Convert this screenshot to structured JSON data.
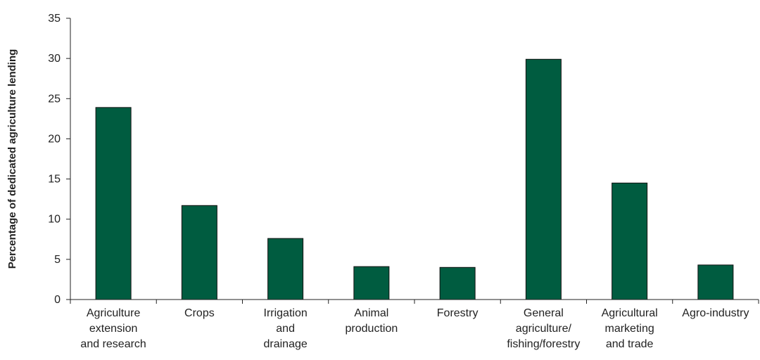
{
  "chart_data": {
    "type": "bar",
    "ylabel": "Percentage of dedicated agriculture lending",
    "xlabel": "",
    "ylim": [
      0,
      35
    ],
    "yticks": [
      0,
      5,
      10,
      15,
      20,
      25,
      30,
      35
    ],
    "grid": false,
    "legend": "none",
    "bar_color": "#005c40",
    "categories": [
      [
        "Agriculture",
        "extension",
        "and research"
      ],
      [
        "Crops"
      ],
      [
        "Irrigation",
        "and",
        "drainage"
      ],
      [
        "Animal",
        "production"
      ],
      [
        "Forestry"
      ],
      [
        "General",
        "agriculture/",
        "fishing/forestry"
      ],
      [
        "Agricultural",
        "marketing",
        "and trade"
      ],
      [
        "Agro-industry"
      ]
    ],
    "values": [
      23.9,
      11.7,
      7.6,
      4.1,
      4.0,
      29.9,
      14.5,
      4.3
    ]
  }
}
